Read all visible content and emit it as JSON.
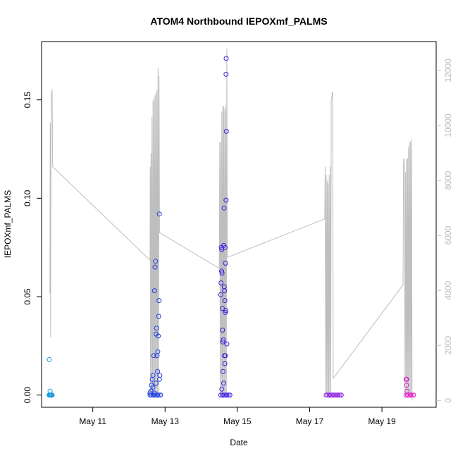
{
  "chart_data": {
    "type": "scatter",
    "title": "ATOM4 Northbound IEPOXmf_PALMS",
    "xlabel": "Date",
    "ylabel": "IEPOXmf_PALMS",
    "xlim": [
      "2018-05-09 14:00",
      "2018-05-20 12:00"
    ],
    "ylim": [
      -0.0062,
      0.1796
    ],
    "x_ticks": [
      {
        "value": "2018-05-11",
        "label": "May 11"
      },
      {
        "value": "2018-05-13",
        "label": "May 13"
      },
      {
        "value": "2018-05-15",
        "label": "May 15"
      },
      {
        "value": "2018-05-17",
        "label": "May 17"
      },
      {
        "value": "2018-05-19",
        "label": "May 19"
      }
    ],
    "y_ticks": [
      {
        "value": 0.0,
        "label": "0.00"
      },
      {
        "value": 0.05,
        "label": "0.05"
      },
      {
        "value": 0.1,
        "label": "0.10"
      },
      {
        "value": 0.15,
        "label": "0.15"
      }
    ],
    "y2_ticks": [
      {
        "value": 0,
        "label": "0"
      },
      {
        "value": 2000,
        "label": "2000"
      },
      {
        "value": 4000,
        "label": "4000"
      },
      {
        "value": 6000,
        "label": "6000"
      },
      {
        "value": 8000,
        "label": "8000"
      },
      {
        "value": 10000,
        "label": "10000"
      },
      {
        "value": 12000,
        "label": "12000"
      }
    ],
    "y2lim": [
      -250,
      13050
    ],
    "grid": false,
    "legend": "none",
    "series": [
      {
        "color": "#1e9be0",
        "points": [
          [
            "2018-05-09 19:10",
            0.018
          ],
          [
            "2018-05-09 19:40",
            0.002
          ],
          [
            "2018-05-09 19:00",
            0.0
          ],
          [
            "2018-05-09 19:20",
            0.0
          ],
          [
            "2018-05-09 19:40",
            0.0
          ],
          [
            "2018-05-09 20:00",
            0.0
          ],
          [
            "2018-05-09 20:20",
            0.0
          ],
          [
            "2018-05-09 20:40",
            0.0
          ],
          [
            "2018-05-09 21:00",
            0.0
          ]
        ]
      },
      {
        "color": "#1e3ce0",
        "points": [
          [
            "2018-05-12 14:00",
            0.001
          ],
          [
            "2018-05-12 14:30",
            0.002
          ],
          [
            "2018-05-12 15:00",
            0.005
          ],
          [
            "2018-05-12 15:30",
            0.008
          ],
          [
            "2018-05-12 16:00",
            0.01
          ],
          [
            "2018-05-12 16:30",
            0.02
          ],
          [
            "2018-05-12 17:00",
            0.053
          ],
          [
            "2018-05-12 17:20",
            0.065
          ],
          [
            "2018-05-12 17:40",
            0.068
          ],
          [
            "2018-05-12 18:00",
            0.031
          ],
          [
            "2018-05-12 18:20",
            0.034
          ],
          [
            "2018-05-12 18:40",
            0.02
          ],
          [
            "2018-05-12 19:00",
            0.012
          ],
          [
            "2018-05-12 19:10",
            0.022
          ],
          [
            "2018-05-12 19:30",
            0.03
          ],
          [
            "2018-05-12 19:45",
            0.04
          ],
          [
            "2018-05-12 20:00",
            0.048
          ],
          [
            "2018-05-12 20:10",
            0.092
          ],
          [
            "2018-05-12 20:20",
            0.008
          ],
          [
            "2018-05-12 20:30",
            0.01
          ],
          [
            "2018-05-12 16:00",
            0.004
          ],
          [
            "2018-05-12 17:00",
            0.001
          ],
          [
            "2018-05-12 18:00",
            0.006
          ],
          [
            "2018-05-12 14:00",
            0.0
          ],
          [
            "2018-05-12 15:00",
            0.0
          ],
          [
            "2018-05-12 16:00",
            0.0
          ],
          [
            "2018-05-12 17:00",
            0.0
          ],
          [
            "2018-05-12 18:00",
            0.0
          ],
          [
            "2018-05-12 19:00",
            0.0
          ],
          [
            "2018-05-12 20:00",
            0.0
          ],
          [
            "2018-05-12 21:00",
            0.0
          ]
        ]
      },
      {
        "color": "#3b1ee0",
        "points": [
          [
            "2018-05-14 13:00",
            0.051
          ],
          [
            "2018-05-14 13:10",
            0.057
          ],
          [
            "2018-05-14 13:30",
            0.063
          ],
          [
            "2018-05-14 13:50",
            0.062
          ],
          [
            "2018-05-14 13:20",
            0.075
          ],
          [
            "2018-05-14 13:40",
            0.074
          ],
          [
            "2018-05-14 14:00",
            0.044
          ],
          [
            "2018-05-14 14:10",
            0.033
          ],
          [
            "2018-05-14 14:20",
            0.027
          ],
          [
            "2018-05-14 14:40",
            0.028
          ],
          [
            "2018-05-14 15:00",
            0.076
          ],
          [
            "2018-05-14 15:10",
            0.095
          ],
          [
            "2018-05-14 15:20",
            0.055
          ],
          [
            "2018-05-14 15:30",
            0.053
          ],
          [
            "2018-05-14 15:40",
            0.048
          ],
          [
            "2018-05-14 15:50",
            0.075
          ],
          [
            "2018-05-14 16:00",
            0.042
          ],
          [
            "2018-05-14 16:10",
            0.067
          ],
          [
            "2018-05-14 16:20",
            0.043
          ],
          [
            "2018-05-14 16:30",
            0.099
          ],
          [
            "2018-05-14 16:40",
            0.134
          ],
          [
            "2018-05-14 16:30",
            0.163
          ],
          [
            "2018-05-14 16:35",
            0.171
          ],
          [
            "2018-05-14 17:00",
            0.026
          ],
          [
            "2018-05-14 15:30",
            0.02
          ],
          [
            "2018-05-14 15:40",
            0.016
          ],
          [
            "2018-05-14 14:30",
            0.012
          ],
          [
            "2018-05-14 16:00",
            0.02
          ],
          [
            "2018-05-14 13:40",
            0.003
          ],
          [
            "2018-05-14 15:00",
            0.006
          ],
          [
            "2018-05-14 13:00",
            0.0
          ],
          [
            "2018-05-14 14:00",
            0.0
          ],
          [
            "2018-05-14 15:00",
            0.0
          ],
          [
            "2018-05-14 16:00",
            0.0
          ],
          [
            "2018-05-14 17:00",
            0.0
          ],
          [
            "2018-05-14 18:00",
            0.0
          ],
          [
            "2018-05-14 19:00",
            0.0
          ]
        ]
      },
      {
        "color": "#8a1ee0",
        "points": [
          [
            "2018-05-17 11:00",
            0.0
          ],
          [
            "2018-05-17 12:00",
            0.0
          ],
          [
            "2018-05-17 13:00",
            0.0
          ],
          [
            "2018-05-17 14:00",
            0.0
          ],
          [
            "2018-05-17 15:00",
            0.0
          ],
          [
            "2018-05-17 16:00",
            0.0
          ],
          [
            "2018-05-17 17:00",
            0.0
          ],
          [
            "2018-05-17 18:00",
            0.0
          ],
          [
            "2018-05-17 19:00",
            0.0
          ],
          [
            "2018-05-17 20:00",
            0.0
          ],
          [
            "2018-05-17 21:00",
            0.0
          ]
        ]
      },
      {
        "color": "#e01ec4",
        "points": [
          [
            "2018-05-19 16:00",
            0.008
          ],
          [
            "2018-05-19 16:30",
            0.008
          ],
          [
            "2018-05-19 16:20",
            0.005
          ],
          [
            "2018-05-19 16:40",
            0.002
          ],
          [
            "2018-05-19 16:00",
            0.0
          ],
          [
            "2018-05-19 17:00",
            0.0
          ],
          [
            "2018-05-19 18:00",
            0.0
          ],
          [
            "2018-05-19 19:00",
            0.0
          ],
          [
            "2018-05-19 20:00",
            0.0
          ],
          [
            "2018-05-19 21:00",
            0.0
          ]
        ]
      }
    ],
    "altitude_series": {
      "color": "#bebebe",
      "points": [
        [
          "2018-05-09 19:30",
          3900
        ],
        [
          "2018-05-09 19:45",
          10100
        ],
        [
          "2018-05-09 20:00",
          2300
        ],
        [
          "2018-05-09 20:15",
          10100
        ],
        [
          "2018-05-09 20:40",
          11200
        ],
        [
          "2018-05-09 21:00",
          11300
        ],
        [
          "2018-05-09 21:20",
          8500
        ],
        [
          "2018-05-12 14:00",
          5100
        ],
        [
          "2018-05-12 14:10",
          8500
        ],
        [
          "2018-05-12 14:20",
          200
        ],
        [
          "2018-05-12 14:40",
          9000
        ],
        [
          "2018-05-12 15:00",
          200
        ],
        [
          "2018-05-12 15:20",
          10300
        ],
        [
          "2018-05-12 15:40",
          200
        ],
        [
          "2018-05-12 16:00",
          10900
        ],
        [
          "2018-05-12 16:20",
          200
        ],
        [
          "2018-05-12 16:40",
          11000
        ],
        [
          "2018-05-12 17:00",
          200
        ],
        [
          "2018-05-12 17:20",
          11100
        ],
        [
          "2018-05-12 17:40",
          200
        ],
        [
          "2018-05-12 18:00",
          11200
        ],
        [
          "2018-05-12 18:20",
          200
        ],
        [
          "2018-05-12 18:40",
          11300
        ],
        [
          "2018-05-12 19:00",
          200
        ],
        [
          "2018-05-12 19:20",
          12100
        ],
        [
          "2018-05-12 19:40",
          200
        ],
        [
          "2018-05-12 20:00",
          11800
        ],
        [
          "2018-05-12 20:20",
          6100
        ],
        [
          "2018-05-14 12:00",
          4800
        ],
        [
          "2018-05-14 12:20",
          9400
        ],
        [
          "2018-05-14 12:40",
          200
        ],
        [
          "2018-05-14 13:00",
          9400
        ],
        [
          "2018-05-14 13:20",
          200
        ],
        [
          "2018-05-14 13:40",
          10500
        ],
        [
          "2018-05-14 14:00",
          200
        ],
        [
          "2018-05-14 14:20",
          10700
        ],
        [
          "2018-05-14 14:40",
          200
        ],
        [
          "2018-05-14 15:00",
          10700
        ],
        [
          "2018-05-14 15:20",
          200
        ],
        [
          "2018-05-14 15:40",
          10600
        ],
        [
          "2018-05-14 16:00",
          200
        ],
        [
          "2018-05-14 16:20",
          10700
        ],
        [
          "2018-05-14 16:40",
          200
        ],
        [
          "2018-05-14 17:00",
          12800
        ],
        [
          "2018-05-14 17:20",
          5200
        ],
        [
          "2018-05-17 10:00",
          6600
        ],
        [
          "2018-05-17 10:20",
          8500
        ],
        [
          "2018-05-17 10:40",
          200
        ],
        [
          "2018-05-17 11:00",
          8200
        ],
        [
          "2018-05-17 11:20",
          200
        ],
        [
          "2018-05-17 11:40",
          8000
        ],
        [
          "2018-05-17 12:00",
          200
        ],
        [
          "2018-05-17 12:20",
          7900
        ],
        [
          "2018-05-17 12:40",
          200
        ],
        [
          "2018-05-17 13:00",
          8200
        ],
        [
          "2018-05-17 13:20",
          200
        ],
        [
          "2018-05-17 13:40",
          8500
        ],
        [
          "2018-05-17 14:00",
          200
        ],
        [
          "2018-05-17 14:20",
          10900
        ],
        [
          "2018-05-17 14:40",
          11000
        ],
        [
          "2018-05-17 15:00",
          11200
        ],
        [
          "2018-05-17 15:20",
          11200
        ],
        [
          "2018-05-17 15:40",
          800
        ],
        [
          "2018-05-19 14:00",
          4200
        ],
        [
          "2018-05-19 14:20",
          8800
        ],
        [
          "2018-05-19 14:40",
          8700
        ],
        [
          "2018-05-19 15:00",
          8500
        ],
        [
          "2018-05-19 15:20",
          200
        ],
        [
          "2018-05-19 15:40",
          8300
        ],
        [
          "2018-05-19 16:00",
          200
        ],
        [
          "2018-05-19 16:20",
          8800
        ],
        [
          "2018-05-19 16:40",
          200
        ],
        [
          "2018-05-19 17:00",
          8800
        ],
        [
          "2018-05-19 17:20",
          200
        ],
        [
          "2018-05-19 17:40",
          9200
        ],
        [
          "2018-05-19 18:00",
          200
        ],
        [
          "2018-05-19 18:20",
          9400
        ],
        [
          "2018-05-19 18:40",
          200
        ],
        [
          "2018-05-19 19:00",
          9400
        ],
        [
          "2018-05-19 19:20",
          200
        ],
        [
          "2018-05-19 19:40",
          9500
        ],
        [
          "2018-05-19 20:00",
          0
        ]
      ]
    }
  }
}
